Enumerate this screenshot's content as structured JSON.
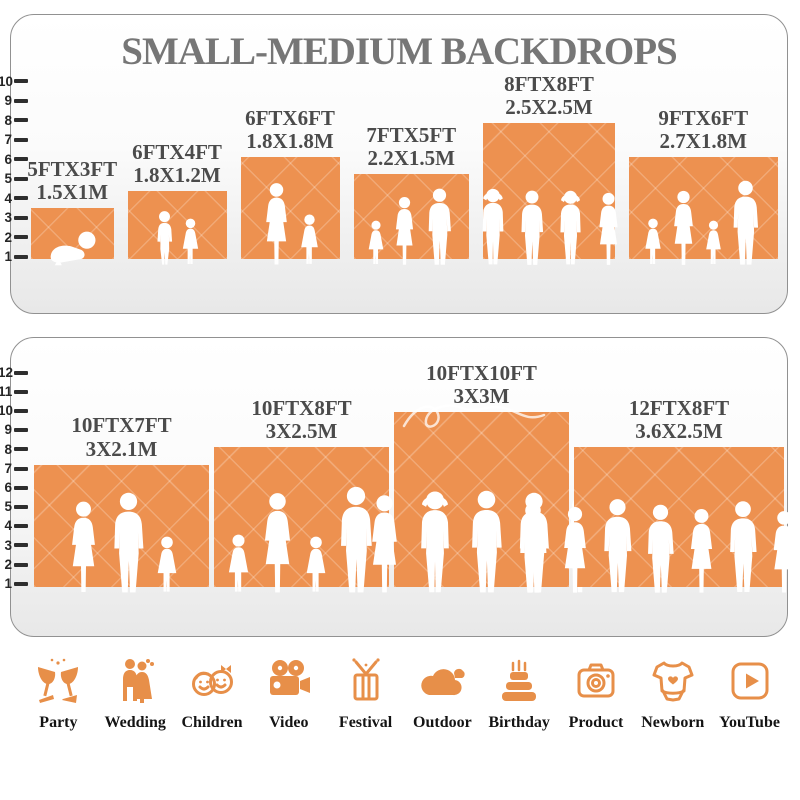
{
  "title": "SMALL-MEDIUM BACKDROPS",
  "colors": {
    "bar_orange": "#ED9150",
    "icon_orange": "#E78F49",
    "title_gray": "#767676",
    "label_gray": "#4B4B4B",
    "floor_gray": "#E0E0E0"
  },
  "chart_data": [
    {
      "type": "bar",
      "title": "SMALL-MEDIUM BACKDROPS",
      "ylim": [
        0,
        10
      ],
      "grid": false,
      "y_ticks": [
        1,
        2,
        3,
        4,
        5,
        6,
        7,
        8,
        9,
        10
      ],
      "categories": [
        "5FTX3FT",
        "6FTX4FT",
        "6FTX6FT",
        "7FTX5FT",
        "8FTX8FT",
        "9FTX6FT"
      ],
      "values": [
        3,
        4,
        6,
        5,
        8,
        6
      ],
      "bar_widths_ft": [
        5,
        6,
        6,
        7,
        8,
        9
      ],
      "metric_labels": [
        "1.5X1M",
        "1.8X1.2M",
        "1.8X1.8M",
        "2.2X1.5M",
        "2.5X2.5M",
        "2.7X1.8M"
      ]
    },
    {
      "type": "bar",
      "title": "",
      "ylim": [
        0,
        12
      ],
      "grid": false,
      "y_ticks": [
        1,
        2,
        3,
        4,
        5,
        6,
        7,
        8,
        9,
        10,
        11,
        12
      ],
      "categories": [
        "10FTX7FT",
        "10FTX8FT",
        "10FTX10FT",
        "12FTX8FT"
      ],
      "values": [
        7,
        8,
        10,
        8
      ],
      "bar_widths_ft": [
        10,
        10,
        10,
        12
      ],
      "metric_labels": [
        "3X2.1M",
        "3X2.5M",
        "3X3M",
        "3.6X2.5M"
      ]
    }
  ],
  "categories": [
    {
      "label": "Party",
      "icon": "party-icon"
    },
    {
      "label": "Wedding",
      "icon": "wedding-icon"
    },
    {
      "label": "Children",
      "icon": "children-icon"
    },
    {
      "label": "Video",
      "icon": "video-icon"
    },
    {
      "label": "Festival",
      "icon": "festival-icon"
    },
    {
      "label": "Outdoor",
      "icon": "outdoor-icon"
    },
    {
      "label": "Birthday",
      "icon": "birthday-icon"
    },
    {
      "label": "Product",
      "icon": "product-icon"
    },
    {
      "label": "Newborn",
      "icon": "newborn-icon"
    },
    {
      "label": "YouTube",
      "icon": "youtube-icon"
    }
  ]
}
